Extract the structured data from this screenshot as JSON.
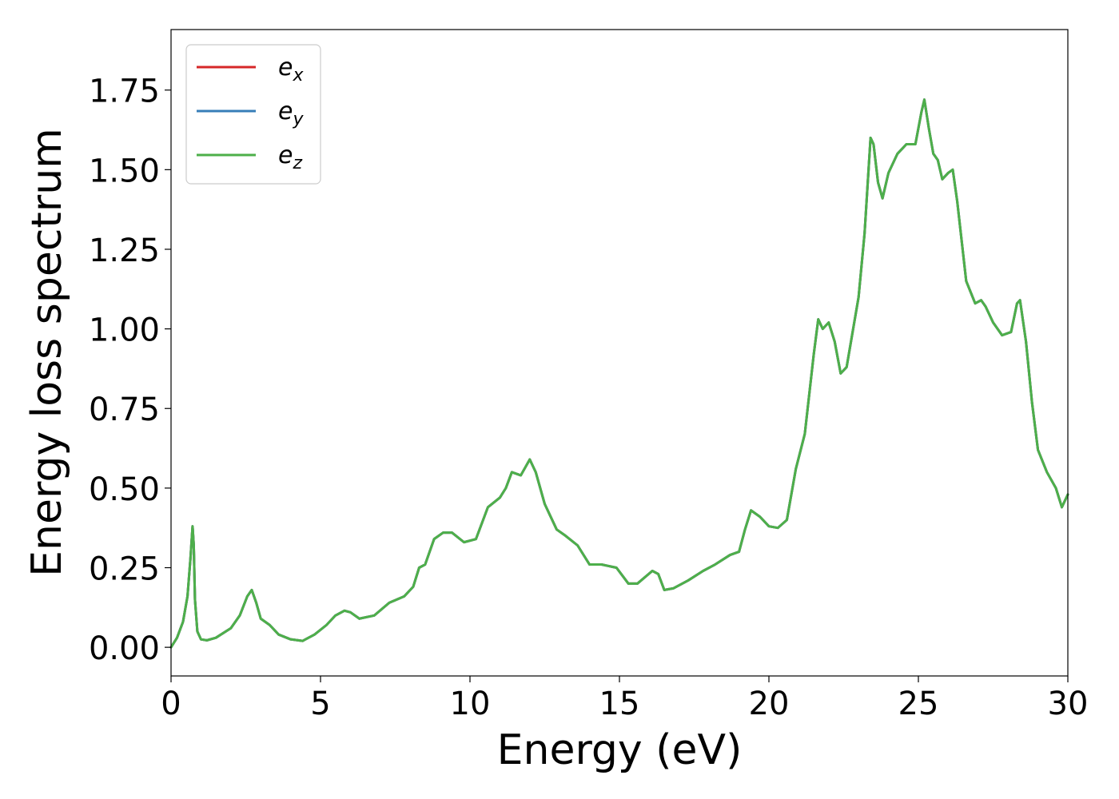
{
  "chart_data": {
    "type": "line",
    "xlabel": "Energy (eV)",
    "ylabel": "Energy loss spectrum",
    "xlim": [
      0,
      30
    ],
    "ylim": [
      -0.09,
      1.94
    ],
    "xticks": [
      0,
      5,
      10,
      15,
      20,
      25,
      30
    ],
    "yticks": [
      0.0,
      0.25,
      0.5,
      0.75,
      1.0,
      1.25,
      1.5,
      1.75
    ],
    "xtick_labels": [
      "0",
      "5",
      "10",
      "15",
      "20",
      "25",
      "30"
    ],
    "ytick_labels": [
      "0.00",
      "0.25",
      "0.50",
      "0.75",
      "1.00",
      "1.25",
      "1.50",
      "1.75"
    ],
    "grid": false,
    "legend_position": "top-left",
    "x": [
      0.0,
      0.2,
      0.4,
      0.55,
      0.65,
      0.72,
      0.76,
      0.8,
      0.88,
      1.0,
      1.2,
      1.5,
      2.0,
      2.3,
      2.55,
      2.7,
      2.85,
      3.0,
      3.3,
      3.6,
      4.0,
      4.4,
      4.8,
      5.2,
      5.5,
      5.8,
      6.0,
      6.3,
      6.8,
      7.3,
      7.8,
      8.1,
      8.3,
      8.5,
      8.8,
      9.1,
      9.4,
      9.8,
      10.2,
      10.6,
      11.0,
      11.2,
      11.4,
      11.7,
      12.0,
      12.2,
      12.5,
      12.9,
      13.2,
      13.6,
      14.0,
      14.4,
      14.9,
      15.3,
      15.6,
      16.1,
      16.3,
      16.5,
      16.8,
      17.3,
      17.8,
      18.2,
      18.7,
      19.0,
      19.2,
      19.4,
      19.7,
      20.0,
      20.3,
      20.6,
      20.9,
      21.2,
      21.5,
      21.65,
      21.8,
      22.0,
      22.2,
      22.4,
      22.6,
      23.0,
      23.2,
      23.4,
      23.5,
      23.65,
      23.8,
      24.0,
      24.3,
      24.6,
      24.9,
      25.1,
      25.2,
      25.35,
      25.5,
      25.65,
      25.8,
      26.0,
      26.15,
      26.3,
      26.6,
      26.9,
      27.1,
      27.25,
      27.5,
      27.8,
      28.1,
      28.3,
      28.4,
      28.6,
      28.8,
      29.0,
      29.3,
      29.6,
      29.8,
      30.0
    ],
    "series": [
      {
        "name": "e_x",
        "color": "#d62728",
        "values": [
          0.0,
          0.03,
          0.08,
          0.16,
          0.28,
          0.38,
          0.32,
          0.15,
          0.05,
          0.025,
          0.022,
          0.03,
          0.06,
          0.1,
          0.16,
          0.18,
          0.14,
          0.09,
          0.07,
          0.04,
          0.025,
          0.02,
          0.04,
          0.07,
          0.1,
          0.115,
          0.11,
          0.09,
          0.1,
          0.14,
          0.16,
          0.19,
          0.25,
          0.26,
          0.34,
          0.36,
          0.36,
          0.33,
          0.34,
          0.44,
          0.47,
          0.5,
          0.55,
          0.54,
          0.59,
          0.55,
          0.45,
          0.37,
          0.35,
          0.32,
          0.26,
          0.26,
          0.25,
          0.2,
          0.2,
          0.24,
          0.23,
          0.18,
          0.185,
          0.21,
          0.24,
          0.26,
          0.29,
          0.3,
          0.37,
          0.43,
          0.41,
          0.38,
          0.375,
          0.4,
          0.56,
          0.67,
          0.92,
          1.03,
          1.0,
          1.02,
          0.96,
          0.86,
          0.88,
          1.1,
          1.3,
          1.6,
          1.58,
          1.46,
          1.41,
          1.49,
          1.55,
          1.58,
          1.58,
          1.68,
          1.72,
          1.63,
          1.55,
          1.53,
          1.47,
          1.49,
          1.5,
          1.4,
          1.15,
          1.08,
          1.09,
          1.07,
          1.02,
          0.98,
          0.99,
          1.08,
          1.09,
          0.96,
          0.77,
          0.62,
          0.55,
          0.5,
          0.44,
          0.48
        ]
      },
      {
        "name": "e_y",
        "color": "#377eb8",
        "values": [
          0.0,
          0.03,
          0.08,
          0.16,
          0.28,
          0.38,
          0.32,
          0.15,
          0.05,
          0.025,
          0.022,
          0.03,
          0.06,
          0.1,
          0.16,
          0.18,
          0.14,
          0.09,
          0.07,
          0.04,
          0.025,
          0.02,
          0.04,
          0.07,
          0.1,
          0.115,
          0.11,
          0.09,
          0.1,
          0.14,
          0.16,
          0.19,
          0.25,
          0.26,
          0.34,
          0.36,
          0.36,
          0.33,
          0.34,
          0.44,
          0.47,
          0.5,
          0.55,
          0.54,
          0.59,
          0.55,
          0.45,
          0.37,
          0.35,
          0.32,
          0.26,
          0.26,
          0.25,
          0.2,
          0.2,
          0.24,
          0.23,
          0.18,
          0.185,
          0.21,
          0.24,
          0.26,
          0.29,
          0.3,
          0.37,
          0.43,
          0.41,
          0.38,
          0.375,
          0.4,
          0.56,
          0.67,
          0.92,
          1.03,
          1.0,
          1.02,
          0.96,
          0.86,
          0.88,
          1.1,
          1.3,
          1.6,
          1.58,
          1.46,
          1.41,
          1.49,
          1.55,
          1.58,
          1.58,
          1.68,
          1.72,
          1.63,
          1.55,
          1.53,
          1.47,
          1.49,
          1.5,
          1.4,
          1.15,
          1.08,
          1.09,
          1.07,
          1.02,
          0.98,
          0.99,
          1.08,
          1.09,
          0.96,
          0.77,
          0.62,
          0.55,
          0.5,
          0.44,
          0.48
        ]
      },
      {
        "name": "e_z",
        "color": "#4daf4a",
        "values": [
          0.0,
          0.03,
          0.08,
          0.16,
          0.28,
          0.38,
          0.32,
          0.15,
          0.05,
          0.025,
          0.022,
          0.03,
          0.06,
          0.1,
          0.16,
          0.18,
          0.14,
          0.09,
          0.07,
          0.04,
          0.025,
          0.02,
          0.04,
          0.07,
          0.1,
          0.115,
          0.11,
          0.09,
          0.1,
          0.14,
          0.16,
          0.19,
          0.25,
          0.26,
          0.34,
          0.36,
          0.36,
          0.33,
          0.34,
          0.44,
          0.47,
          0.5,
          0.55,
          0.54,
          0.59,
          0.55,
          0.45,
          0.37,
          0.35,
          0.32,
          0.26,
          0.26,
          0.25,
          0.2,
          0.2,
          0.24,
          0.23,
          0.18,
          0.185,
          0.21,
          0.24,
          0.26,
          0.29,
          0.3,
          0.37,
          0.43,
          0.41,
          0.38,
          0.375,
          0.4,
          0.56,
          0.67,
          0.92,
          1.03,
          1.0,
          1.02,
          0.96,
          0.86,
          0.88,
          1.1,
          1.3,
          1.6,
          1.58,
          1.46,
          1.41,
          1.49,
          1.55,
          1.58,
          1.58,
          1.68,
          1.72,
          1.63,
          1.55,
          1.53,
          1.47,
          1.49,
          1.5,
          1.4,
          1.15,
          1.08,
          1.09,
          1.07,
          1.02,
          0.98,
          0.99,
          1.08,
          1.09,
          0.96,
          0.77,
          0.62,
          0.55,
          0.5,
          0.44,
          0.48
        ]
      }
    ],
    "legend": [
      {
        "base": "e",
        "sub": "x",
        "color": "#d62728"
      },
      {
        "base": "e",
        "sub": "y",
        "color": "#377eb8"
      },
      {
        "base": "e",
        "sub": "z",
        "color": "#4daf4a"
      }
    ]
  }
}
